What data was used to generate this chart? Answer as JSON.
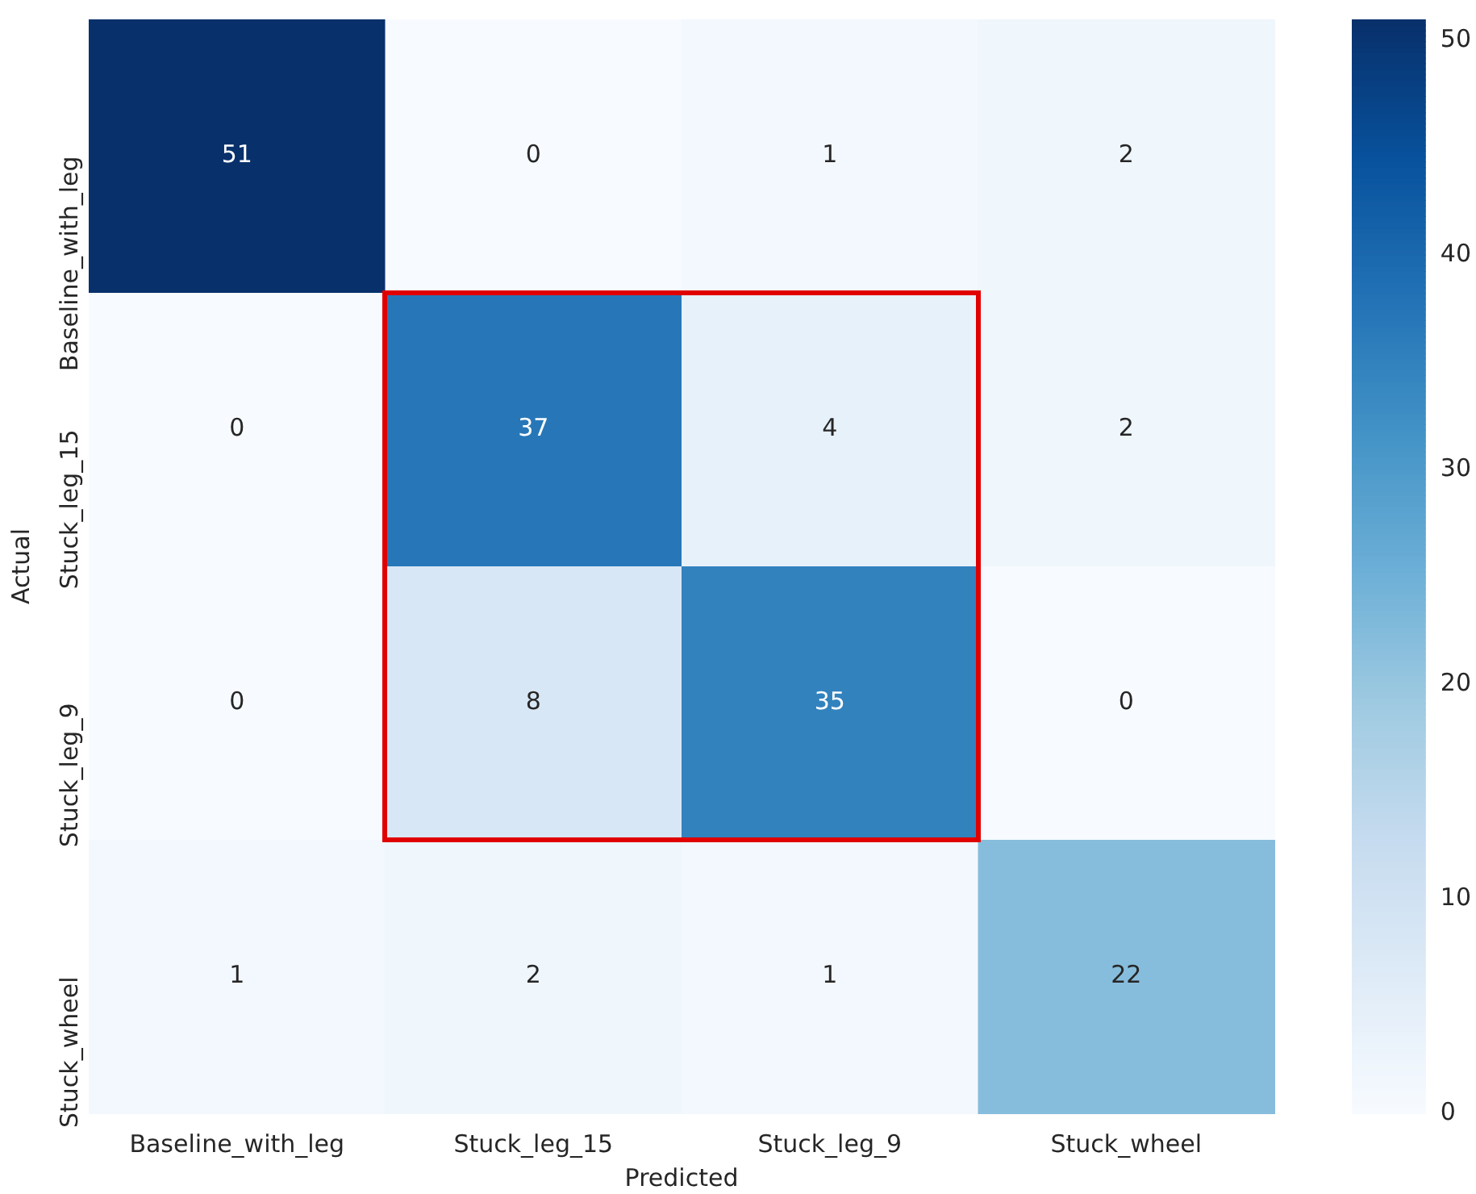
{
  "chart_data": {
    "type": "heatmap",
    "xlabel": "Predicted",
    "ylabel": "Actual",
    "categories": [
      "Baseline_with_leg",
      "Stuck_leg_15",
      "Stuck_leg_9",
      "Stuck_wheel"
    ],
    "y_categories": [
      "Baseline_with_leg",
      "Stuck_leg_15",
      "Stuck_leg_9",
      "Stuck_wheel"
    ],
    "cells": [
      [
        51,
        0,
        1,
        2
      ],
      [
        0,
        37,
        4,
        2
      ],
      [
        0,
        8,
        35,
        0
      ],
      [
        1,
        2,
        1,
        22
      ]
    ],
    "clim": [
      0,
      51
    ],
    "cticks": [
      0,
      10,
      20,
      30,
      40,
      50
    ],
    "data_labels": true
  }
}
